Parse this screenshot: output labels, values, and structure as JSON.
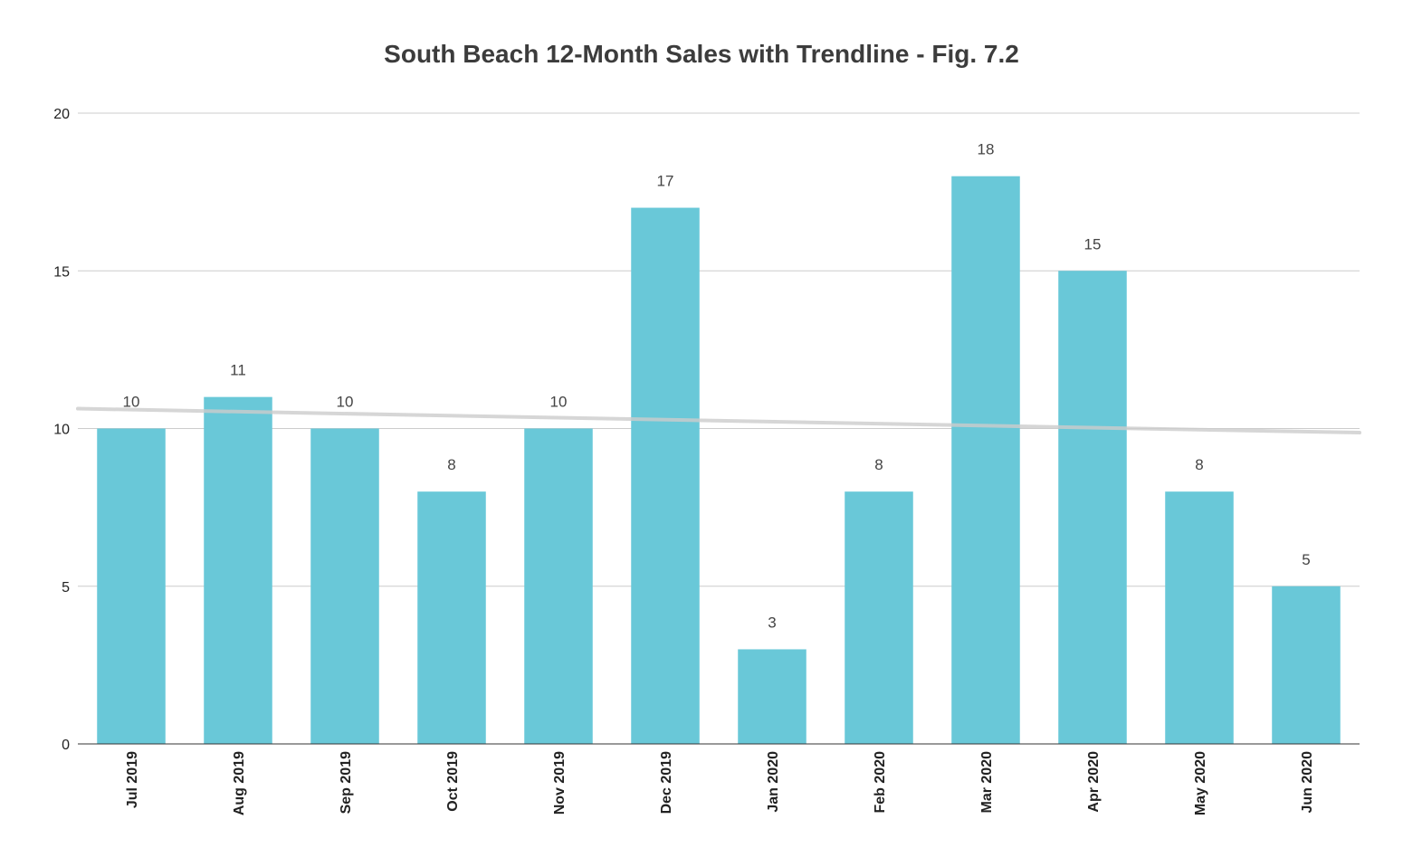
{
  "chart_data": {
    "type": "bar",
    "title": "South Beach 12-Month Sales with Trendline - Fig. 7.2",
    "xlabel": "",
    "ylabel": "",
    "categories": [
      "Jul 2019",
      "Aug 2019",
      "Sep 2019",
      "Oct 2019",
      "Nov 2019",
      "Dec 2019",
      "Jan 2020",
      "Feb 2020",
      "Mar 2020",
      "Apr 2020",
      "May 2020",
      "Jun 2020"
    ],
    "values": [
      10,
      11,
      10,
      8,
      10,
      17,
      3,
      8,
      18,
      15,
      8,
      5
    ],
    "ylim": [
      0,
      20
    ],
    "yticks": [
      0,
      5,
      10,
      15,
      20
    ],
    "grid": true,
    "legend": "none",
    "data_labels": true,
    "trendline": {
      "type": "linear",
      "start_value": 10.63,
      "end_value": 9.87,
      "color": "#cccccc"
    },
    "bar_color": "#69c8d8"
  }
}
